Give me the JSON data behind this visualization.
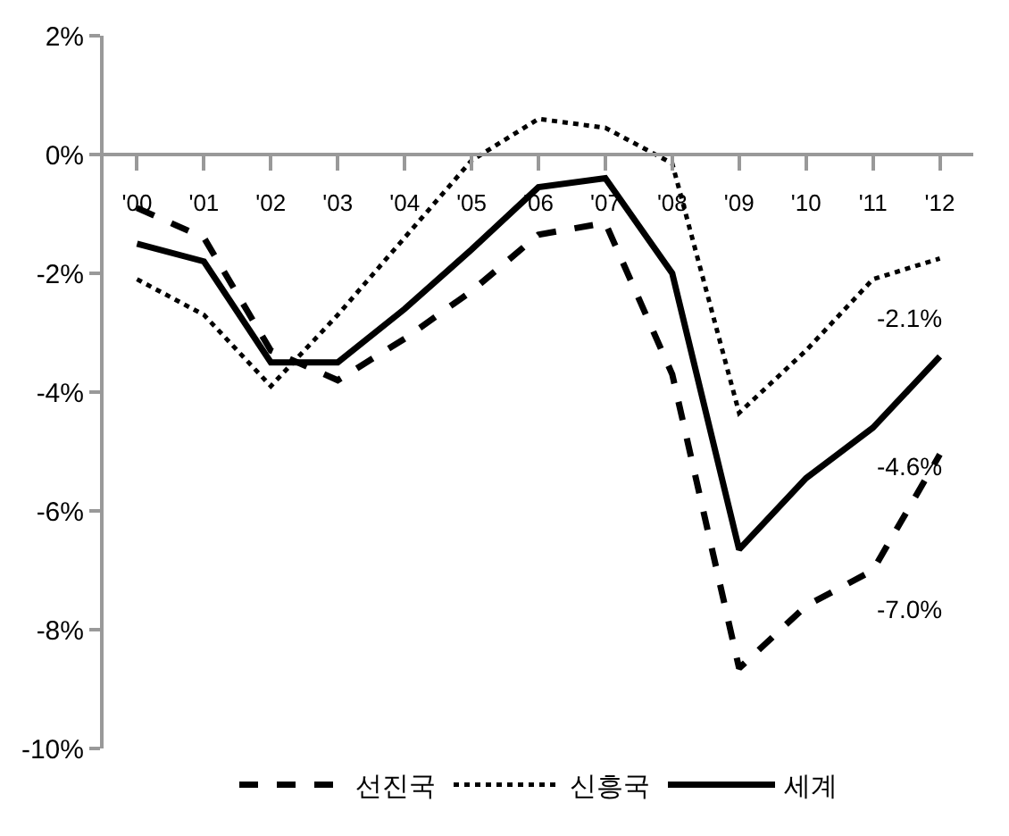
{
  "chart_data": {
    "type": "line",
    "categories": [
      "'00",
      "'01",
      "'02",
      "'03",
      "'04",
      "'05",
      "'06",
      "'07",
      "'08",
      "'09",
      "'10",
      "'11",
      "'12"
    ],
    "series": [
      {
        "name": "선진국",
        "color": "#000000",
        "line_style": "dashed",
        "values": [
          -0.9,
          -1.4,
          -3.3,
          -3.8,
          -3.1,
          -2.3,
          -1.35,
          -1.15,
          -3.7,
          -8.65,
          -7.6,
          -7.0,
          -5.05
        ]
      },
      {
        "name": "신흥국",
        "color": "#000000",
        "line_style": "dotted",
        "values": [
          -2.1,
          -2.7,
          -3.9,
          -2.7,
          -1.4,
          -0.1,
          0.6,
          0.45,
          -0.15,
          -4.35,
          -3.3,
          -2.1,
          -1.75
        ]
      },
      {
        "name": "세계",
        "color": "#000000",
        "line_style": "solid",
        "values": [
          -1.5,
          -1.8,
          -3.5,
          -3.5,
          -2.6,
          -1.6,
          -0.55,
          -0.4,
          -2.0,
          -6.65,
          -5.45,
          -4.6,
          -3.4
        ]
      }
    ],
    "annotations": [
      "-7.0%",
      "-2.1%",
      "-4.6%"
    ],
    "ylim": [
      -10,
      2
    ],
    "yticks": [
      {
        "value": -10,
        "label": "-10%"
      },
      {
        "value": -8,
        "label": "-8%"
      },
      {
        "value": -6,
        "label": "-6%"
      },
      {
        "value": -4,
        "label": "-4%"
      },
      {
        "value": -2,
        "label": "-2%"
      },
      {
        "value": 0,
        "label": "0%"
      },
      {
        "value": 2,
        "label": "2%"
      }
    ],
    "marker": "none",
    "legend": "bottom"
  }
}
